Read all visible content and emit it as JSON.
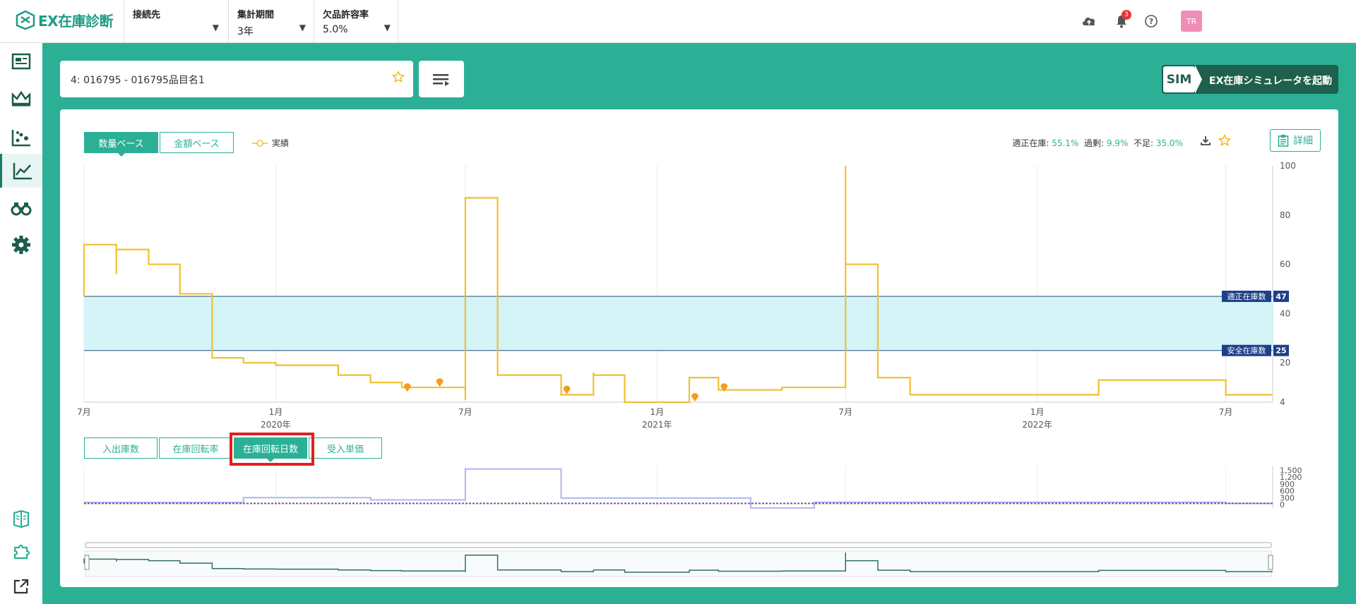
{
  "header": {
    "logo": "EX在庫診断",
    "selectors": [
      {
        "label": "接続先",
        "value": ""
      },
      {
        "label": "集計期間",
        "value": "3年"
      },
      {
        "label": "欠品許容率",
        "value": "5.0%"
      }
    ],
    "notification_count": "3",
    "avatar": "TR",
    "icons": [
      "cloud-upload-icon",
      "bell-icon",
      "help-icon"
    ]
  },
  "sidebar": {
    "items": [
      "dashboard-icon",
      "crown-icon",
      "scatter-chart-icon",
      "line-chart-icon",
      "binoculars-icon",
      "gear-icon"
    ],
    "bottom_items": [
      "book-icon",
      "puzzle-icon",
      "external-link-icon"
    ],
    "active_index": 3
  },
  "search": {
    "value": "4: 016795 - 016795品目名1"
  },
  "sim_button": {
    "badge": "SIM",
    "label": "EX在庫シミュレータを起動"
  },
  "main": {
    "base_tabs": [
      "数量ベース",
      "金額ベース"
    ],
    "active_base_tab": 0,
    "legend_label": "実績",
    "stats": {
      "appropriate_label": "適正在庫:",
      "appropriate_value": "55.1%",
      "excess_label": "過剰:",
      "excess_value": "9.9%",
      "shortage_label": "不足:",
      "shortage_value": "35.0%"
    },
    "detail_label": "詳細",
    "sub_tabs": [
      "入出庫数",
      "在庫回転率",
      "在庫回転日数",
      "受入単価"
    ],
    "active_sub_tab": 2
  },
  "chart_data": [
    {
      "type": "line",
      "series": [
        {
          "name": "実績",
          "color": "#f0c030"
        }
      ],
      "x_tick_labels": [
        "7月",
        "1月",
        "7月",
        "1月",
        "7月",
        "1月",
        "7月"
      ],
      "year_labels": [
        "2020年",
        "2021年",
        "2022年"
      ],
      "y_tick_labels": [
        "100",
        "80",
        "60",
        "40",
        "20",
        "4"
      ],
      "ylim": [
        4,
        100
      ],
      "bands": [
        {
          "label": "適正在庫数",
          "value": 47
        },
        {
          "label": "安全在庫数",
          "value": 25
        }
      ],
      "x": [
        "2019-07",
        "2019-07",
        "2019-08",
        "2019-08",
        "2019-08",
        "2019-09",
        "2019-10",
        "2019-11",
        "2019-11",
        "2019-12",
        "2019-12",
        "2020-01",
        "2020-03",
        "2020-04",
        "2020-05",
        "2020-05",
        "2020-07",
        "2020-07",
        "2020-07",
        "2020-08",
        "2020-08",
        "2020-08",
        "2020-10",
        "2020-10",
        "2020-11",
        "2020-11",
        "2020-12",
        "2021-01",
        "2021-02",
        "2021-03",
        "2021-05",
        "2021-06",
        "2021-07",
        "2021-07",
        "2021-07",
        "2021-08",
        "2021-08",
        "2021-09",
        "2021-09",
        "2022-03",
        "2022-03",
        "2022-07"
      ],
      "values": [
        47,
        68,
        56,
        66,
        66,
        60,
        48,
        30,
        22,
        22,
        20,
        19,
        15,
        12,
        10,
        10,
        10,
        5,
        87,
        86,
        34,
        15,
        15,
        7,
        16,
        15,
        4,
        4,
        14,
        9,
        10,
        10,
        100,
        85,
        60,
        20,
        14,
        7,
        7,
        7,
        13,
        7
      ]
    },
    {
      "type": "line",
      "title": "在庫回転日数",
      "y_tick_labels": [
        "1,500",
        "1,200",
        "900",
        "600",
        "300",
        "0"
      ],
      "ylim": [
        0,
        1600
      ],
      "x": [
        "2019-07",
        "2019-12",
        "2020-04",
        "2020-07",
        "2020-10",
        "2021-04",
        "2021-06",
        "2022-07"
      ],
      "values": [
        90,
        300,
        200,
        1550,
        280,
        -150,
        100,
        50
      ]
    }
  ]
}
